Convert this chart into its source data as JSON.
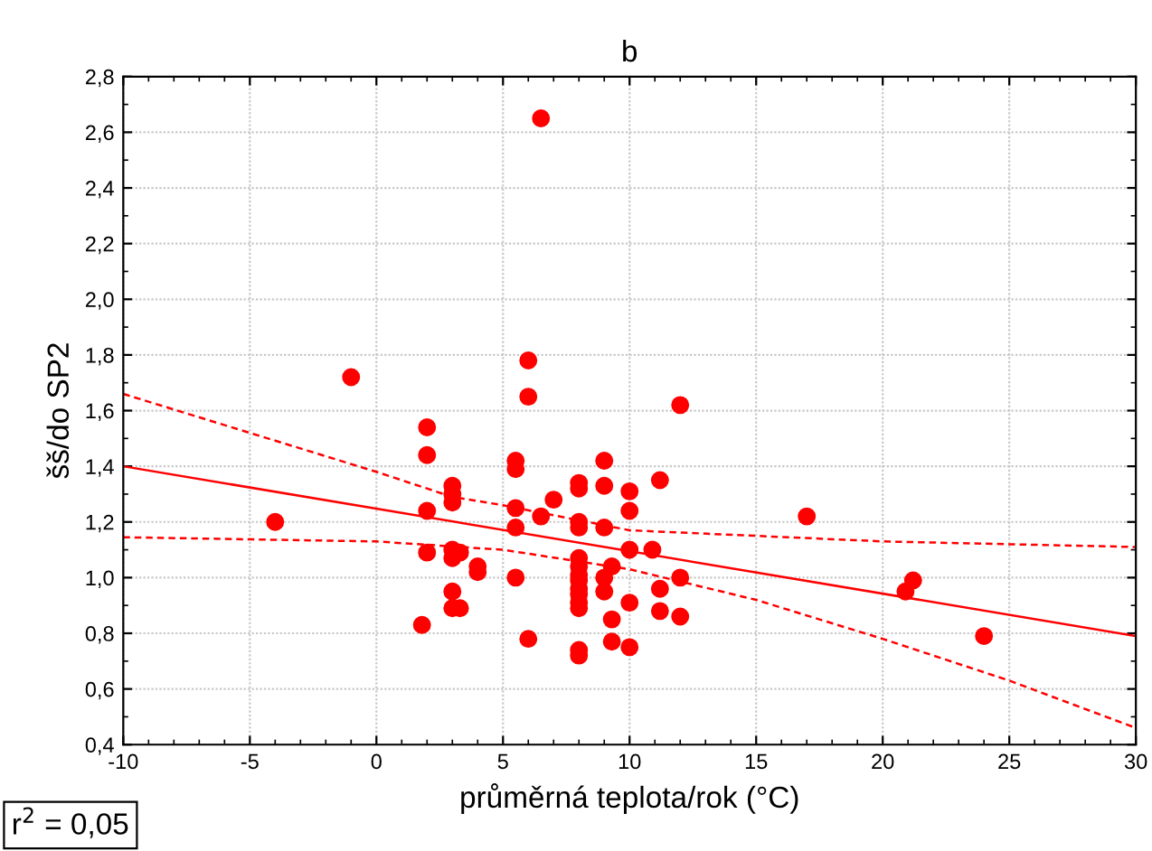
{
  "chart_data": {
    "type": "scatter",
    "title": "b",
    "xlabel": "průměrná teplota/rok (°C)",
    "ylabel": "šš/do SP2",
    "annotations": [
      "r$^{2}$ = 0,05"
    ],
    "xlim": [
      -10,
      30
    ],
    "xticks": [
      -10,
      -5,
      0,
      5,
      10,
      15,
      20,
      25,
      30
    ],
    "ylim": [
      0.4,
      2.8
    ],
    "yticks": [
      {
        "value": 0.4,
        "label": "0,4"
      },
      {
        "value": 0.6,
        "label": "0,6"
      },
      {
        "value": 0.8,
        "label": "0,8"
      },
      {
        "value": 1.0,
        "label": "1,0"
      },
      {
        "value": 1.2,
        "label": "1,2"
      },
      {
        "value": 1.4,
        "label": "1,4"
      },
      {
        "value": 1.6,
        "label": "1,6"
      },
      {
        "value": 1.8,
        "label": "1,8"
      },
      {
        "value": 2.0,
        "label": "2,0"
      },
      {
        "value": 2.2,
        "label": "2,2"
      },
      {
        "value": 2.4,
        "label": "2,4"
      },
      {
        "value": 2.6,
        "label": "2,6"
      },
      {
        "value": 2.8,
        "label": "2,8"
      }
    ],
    "grid": true,
    "legend": false,
    "series": [
      {
        "color": "#ff0000",
        "marker": "circle",
        "x": [
          -4,
          -1,
          1.8,
          2,
          2,
          2,
          2,
          3,
          3,
          3,
          3,
          3,
          3.3,
          3,
          3,
          3.3,
          4,
          4,
          5.5,
          5.5,
          5.5,
          5.5,
          5.5,
          6,
          6,
          6,
          6.5,
          6.5,
          7,
          8,
          8,
          8,
          8,
          8,
          8,
          8,
          8,
          8,
          8,
          8,
          8,
          8,
          8,
          9,
          9,
          9,
          9,
          9,
          9.3,
          9.3,
          9.3,
          10,
          10,
          10,
          10,
          10,
          10.9,
          11.2,
          11.2,
          11.2,
          12,
          12,
          12,
          17,
          20.9,
          21.2,
          24
        ],
        "values": [
          1.2,
          1.72,
          0.83,
          1.54,
          1.44,
          1.24,
          1.09,
          1.33,
          1.3,
          1.27,
          1.1,
          1.07,
          1.09,
          0.95,
          0.89,
          0.89,
          1.04,
          1.02,
          1.42,
          1.39,
          1.25,
          1.18,
          1.0,
          1.78,
          1.65,
          0.78,
          2.65,
          1.22,
          1.28,
          1.34,
          1.32,
          1.2,
          1.18,
          1.07,
          1.04,
          1.01,
          0.99,
          0.96,
          0.94,
          0.91,
          0.89,
          0.74,
          0.72,
          1.42,
          1.33,
          1.18,
          1.0,
          0.95,
          1.04,
          0.85,
          0.77,
          1.31,
          1.24,
          1.1,
          0.91,
          0.75,
          1.1,
          1.35,
          0.96,
          0.88,
          1.62,
          1.0,
          0.86,
          1.22,
          0.95,
          0.99,
          0.79
        ]
      },
      {
        "type": "line",
        "color": "#ff0000",
        "line_style": "solid",
        "x": [
          -10,
          30
        ],
        "values": [
          1.4,
          0.79
        ]
      },
      {
        "type": "line",
        "color": "#ff0000",
        "line_style": "dashed",
        "x": [
          -10,
          -5,
          0,
          3,
          5,
          10,
          20,
          30
        ],
        "values": [
          1.66,
          1.52,
          1.38,
          1.29,
          1.26,
          1.17,
          1.13,
          1.11
        ]
      },
      {
        "type": "line",
        "color": "#ff0000",
        "line_style": "dashed",
        "x": [
          -10,
          0,
          5,
          10,
          15,
          20,
          25,
          30
        ],
        "values": [
          1.145,
          1.13,
          1.1,
          1.03,
          0.92,
          0.78,
          0.63,
          0.46
        ]
      }
    ]
  }
}
